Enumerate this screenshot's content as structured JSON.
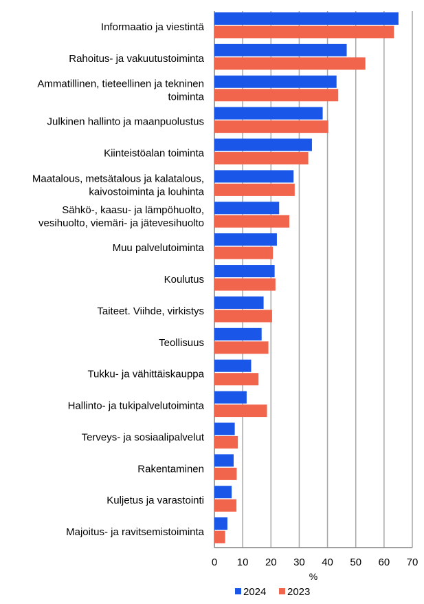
{
  "chart_data": {
    "type": "bar",
    "orientation": "horizontal",
    "categories": [
      [
        "Informaatio ja viestintä"
      ],
      [
        "Rahoitus- ja vakuutustoiminta"
      ],
      [
        "Ammatillinen, tieteellinen ja tekninen",
        "toiminta"
      ],
      [
        "Julkinen hallinto ja maanpuolustus"
      ],
      [
        "Kiinteistöalan toiminta"
      ],
      [
        "Maatalous, metsätalous ja kalatalous,",
        "kaivostoiminta ja louhinta"
      ],
      [
        "Sähkö-, kaasu- ja lämpöhuolto,",
        "vesihuolto, viemäri- ja jätevesihuolto"
      ],
      [
        "Muu palvelutoiminta"
      ],
      [
        "Koulutus"
      ],
      [
        "Taiteet. Viihde, virkistys"
      ],
      [
        "Teollisuus"
      ],
      [
        "Tukku- ja vähittäiskauppa"
      ],
      [
        "Hallinto- ja tukipalvelutoiminta"
      ],
      [
        "Terveys- ja sosiaalipalvelut"
      ],
      [
        "Rakentaminen"
      ],
      [
        "Kuljetus ja varastointi"
      ],
      [
        "Majoitus- ja ravitsemistoiminta"
      ]
    ],
    "series": [
      {
        "name": "2024",
        "color": "#1a56e8",
        "values": [
          65.1,
          46.8,
          43.2,
          38.3,
          34.5,
          28.0,
          22.9,
          22.1,
          21.3,
          17.4,
          16.7,
          13.0,
          11.4,
          7.2,
          6.8,
          6.1,
          4.6
        ]
      },
      {
        "name": "2023",
        "color": "#f2654d",
        "values": [
          63.5,
          53.4,
          43.8,
          40.3,
          33.2,
          28.4,
          26.5,
          20.7,
          21.6,
          20.4,
          19.1,
          15.6,
          18.6,
          8.3,
          7.9,
          7.8,
          3.8
        ]
      }
    ],
    "xlabel": "%",
    "xlim": [
      0,
      70
    ],
    "xticks": [
      "0",
      "10",
      "20",
      "30",
      "40",
      "50",
      "60",
      "70"
    ],
    "grid": true,
    "legend": "bottom"
  }
}
